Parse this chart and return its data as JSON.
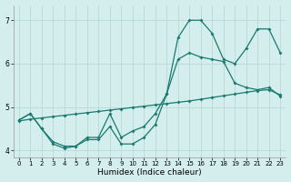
{
  "xlabel": "Humidex (Indice chaleur)",
  "bg_color": "#d4eeee",
  "line_color": "#1a7a6e",
  "grid_color": "#b8d8d8",
  "line1_x": [
    0,
    1,
    2,
    3,
    4,
    5,
    6,
    7,
    8,
    9,
    10,
    11,
    12,
    13,
    14,
    15,
    16,
    17,
    18,
    19,
    20,
    21,
    22,
    23
  ],
  "line1_y": [
    4.7,
    4.85,
    4.5,
    4.2,
    4.1,
    4.1,
    4.3,
    4.3,
    4.85,
    4.3,
    4.45,
    4.55,
    4.85,
    5.3,
    6.6,
    7.0,
    7.0,
    6.7,
    6.1,
    6.0,
    6.35,
    6.8,
    6.8,
    6.25
  ],
  "line2_x": [
    0,
    1,
    2,
    3,
    4,
    5,
    6,
    7,
    8,
    9,
    10,
    11,
    12,
    13,
    14,
    15,
    16,
    17,
    18,
    19,
    20,
    21,
    22,
    23
  ],
  "line2_y": [
    4.7,
    4.85,
    4.5,
    4.15,
    4.05,
    4.1,
    4.25,
    4.25,
    4.55,
    4.15,
    4.15,
    4.3,
    4.6,
    5.3,
    6.1,
    6.25,
    6.15,
    6.1,
    6.05,
    5.55,
    5.45,
    5.4,
    5.45,
    5.25
  ],
  "line3_x": [
    0,
    1,
    2,
    3,
    4,
    5,
    6,
    7,
    8,
    9,
    10,
    11,
    12,
    13,
    14,
    15,
    16,
    17,
    18,
    19,
    20,
    21,
    22,
    23
  ],
  "line3_y": [
    4.68,
    4.72,
    4.75,
    4.78,
    4.81,
    4.84,
    4.87,
    4.9,
    4.93,
    4.96,
    4.99,
    5.02,
    5.05,
    5.08,
    5.11,
    5.14,
    5.18,
    5.22,
    5.26,
    5.3,
    5.34,
    5.38,
    5.4,
    5.28
  ],
  "ylim": [
    3.85,
    7.35
  ],
  "yticks": [
    4,
    5,
    6,
    7
  ],
  "xlim": [
    -0.5,
    23.5
  ],
  "xticks": [
    0,
    1,
    2,
    3,
    4,
    5,
    6,
    7,
    8,
    9,
    10,
    11,
    12,
    13,
    14,
    15,
    16,
    17,
    18,
    19,
    20,
    21,
    22,
    23
  ]
}
